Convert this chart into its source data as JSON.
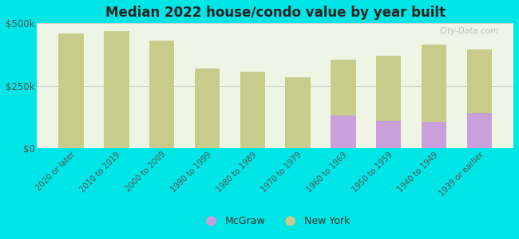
{
  "title": "Median 2022 house/condo value by year built",
  "categories": [
    "2020 or later",
    "2010 to 2019",
    "2000 to 2009",
    "1990 to 1999",
    "1980 to 1989",
    "1970 to 1979",
    "1960 to 1969",
    "1950 to 1959",
    "1940 to 1949",
    "1939 or earlier"
  ],
  "mcgraw_values": [
    null,
    null,
    null,
    null,
    null,
    null,
    130000,
    110000,
    105000,
    140000
  ],
  "newyork_values": [
    460000,
    470000,
    430000,
    320000,
    305000,
    285000,
    355000,
    370000,
    415000,
    395000
  ],
  "mcgraw_color": "#c9a0dc",
  "newyork_color": "#c8cc8a",
  "background_color": "#00e5e5",
  "plot_bg_grad_top": "#f5f9ee",
  "plot_bg_grad_bot": "#e8f5e0",
  "ylim": [
    0,
    500000
  ],
  "ytick_labels": [
    "$0",
    "$250k",
    "$500k"
  ],
  "watermark": "City-Data.com",
  "bar_width": 0.55,
  "legend_mcgraw": "McGraw",
  "legend_newyork": "New York"
}
